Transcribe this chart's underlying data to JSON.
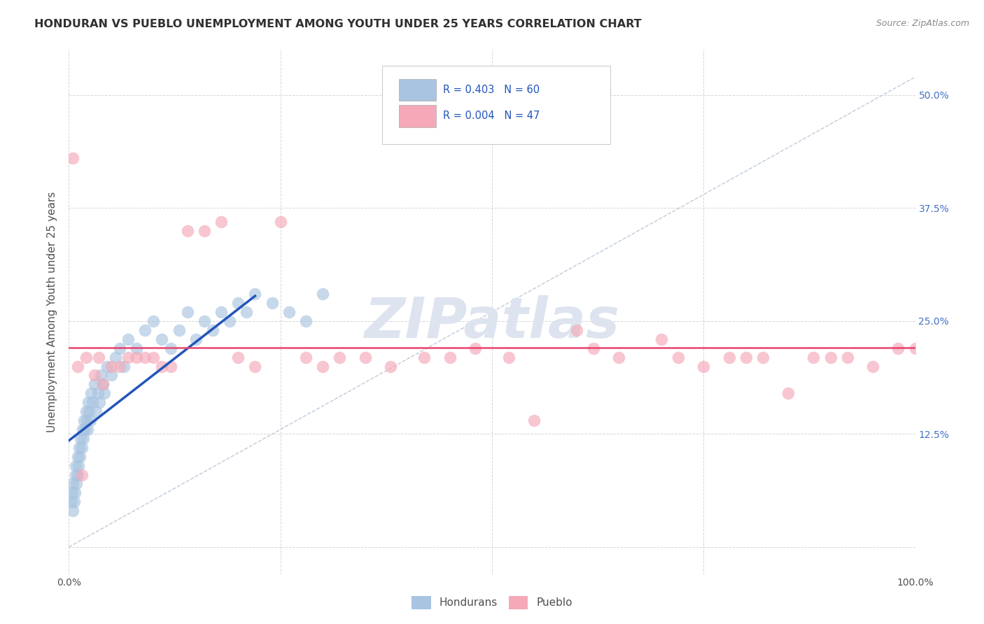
{
  "title": "HONDURAN VS PUEBLO UNEMPLOYMENT AMONG YOUTH UNDER 25 YEARS CORRELATION CHART",
  "source": "Source: ZipAtlas.com",
  "ylabel": "Unemployment Among Youth under 25 years",
  "xlim": [
    0,
    100
  ],
  "ylim": [
    -3,
    55
  ],
  "legend_R1": "0.403",
  "legend_N1": "60",
  "legend_R2": "0.004",
  "legend_N2": "47",
  "hondurans_color": "#a8c4e0",
  "pueblo_color": "#f4a8b8",
  "trend_blue_color": "#2255bb",
  "trend_pink_color": "#e8436e",
  "diagonal_color": "#b8c4d8",
  "grid_color": "#cccccc",
  "title_color": "#303030",
  "axis_label_color": "#505050",
  "tick_color_right": "#4472c4",
  "watermark_color": "#dde4ef",
  "hon_x": [
    0.3,
    0.4,
    0.5,
    0.5,
    0.6,
    0.7,
    0.8,
    0.8,
    0.9,
    1.0,
    1.0,
    1.1,
    1.2,
    1.3,
    1.4,
    1.5,
    1.6,
    1.7,
    1.8,
    1.9,
    2.0,
    2.1,
    2.2,
    2.3,
    2.4,
    2.5,
    2.6,
    2.8,
    3.0,
    3.2,
    3.4,
    3.6,
    3.8,
    4.0,
    4.2,
    4.5,
    5.0,
    5.5,
    6.0,
    6.5,
    7.0,
    8.0,
    9.0,
    10.0,
    11.0,
    12.0,
    13.0,
    14.0,
    15.0,
    16.0,
    17.0,
    18.0,
    19.0,
    20.0,
    21.0,
    22.0,
    24.0,
    26.0,
    28.0,
    30.0
  ],
  "hon_y": [
    5,
    6,
    4,
    7,
    5,
    6,
    8,
    9,
    7,
    8,
    10,
    9,
    11,
    10,
    12,
    11,
    13,
    12,
    14,
    13,
    15,
    14,
    13,
    16,
    15,
    14,
    17,
    16,
    18,
    15,
    17,
    16,
    19,
    18,
    17,
    20,
    19,
    21,
    22,
    20,
    23,
    22,
    24,
    25,
    23,
    22,
    24,
    26,
    23,
    25,
    24,
    26,
    25,
    27,
    26,
    28,
    27,
    26,
    25,
    28
  ],
  "pub_x": [
    0.5,
    1.0,
    1.5,
    2.0,
    3.0,
    3.5,
    4.0,
    5.0,
    6.0,
    7.0,
    8.0,
    9.0,
    10.0,
    11.0,
    12.0,
    14.0,
    16.0,
    18.0,
    20.0,
    22.0,
    25.0,
    28.0,
    30.0,
    32.0,
    35.0,
    38.0,
    42.0,
    45.0,
    48.0,
    52.0,
    55.0,
    60.0,
    62.0,
    65.0,
    70.0,
    72.0,
    75.0,
    78.0,
    80.0,
    82.0,
    85.0,
    88.0,
    90.0,
    92.0,
    95.0,
    98.0,
    100.0
  ],
  "pub_y": [
    43,
    20,
    8,
    21,
    19,
    21,
    18,
    20,
    20,
    21,
    21,
    21,
    21,
    20,
    20,
    35,
    35,
    36,
    21,
    20,
    36,
    21,
    20,
    21,
    21,
    20,
    21,
    21,
    22,
    21,
    14,
    24,
    22,
    21,
    23,
    21,
    20,
    21,
    21,
    21,
    17,
    21,
    21,
    21,
    20,
    22,
    22
  ]
}
